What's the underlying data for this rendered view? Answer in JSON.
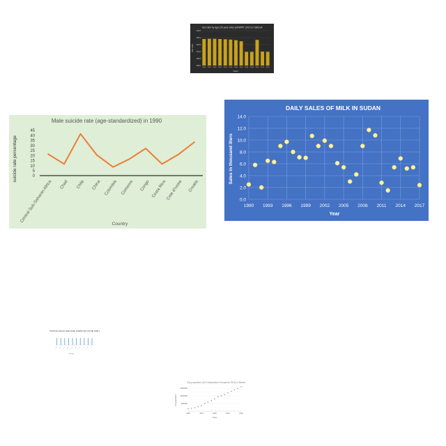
{
  "chart_data": [
    {
      "type": "bar",
      "title": "Sex ratio by age (20 year olds) (UNWPP, 2017) in Djibouti",
      "xlabel": "Years",
      "ylabel": "Sex ratio",
      "ylim": [
        100.0,
        102.5
      ],
      "yticks": [
        "102.5",
        "102.0",
        "101.5",
        "101.0",
        "100.5",
        "100.0"
      ],
      "categories": [
        "2000",
        "2001",
        "2002",
        "2003",
        "2004",
        "2005",
        "2006",
        "2007",
        "2008",
        "2009",
        "2010",
        "2011",
        "2012"
      ],
      "values": [
        101.9,
        101.92,
        101.92,
        101.9,
        101.88,
        101.86,
        101.82,
        101.74,
        100.98,
        100.98,
        101.84,
        101.0,
        100.98
      ],
      "grid": true,
      "colors": {
        "bar": "#c9a21c",
        "background": "#2b2b2b",
        "text": "#dddddd"
      }
    },
    {
      "type": "line",
      "title": "Male suicide rate (age-standardized) in 1990",
      "xlabel": "Country",
      "ylabel": "suicide rate percentage",
      "ylim": [
        0,
        45
      ],
      "yticks": [
        "0",
        "5",
        "10",
        "15",
        "20",
        "25",
        "30",
        "35",
        "40",
        "45"
      ],
      "categories": [
        "Central Sub-Saharan Africa",
        "Chad",
        "Chile",
        "China",
        "Colombia",
        "Comoros",
        "Congo",
        "Costa Rica",
        "Cote d'Ivoire",
        "Croatia"
      ],
      "values": [
        21.5,
        11.5,
        41.5,
        20.5,
        8.5,
        16.5,
        27.0,
        11.5,
        21.0,
        33.5
      ],
      "grid": false,
      "colors": {
        "line": "#ed7d31",
        "background": "#dfeed6",
        "text": "#555555"
      }
    },
    {
      "type": "scatter",
      "title": "DAILY SALES OF MILK IN SUDAN",
      "xlabel": "Year",
      "ylabel": "Sales in thousand liters",
      "xlim": [
        1990,
        2017
      ],
      "ylim": [
        0.0,
        14.0
      ],
      "xticks": [
        "1990",
        "1993",
        "1996",
        "1999",
        "2002",
        "2005",
        "2008",
        "2011",
        "2014",
        "2017"
      ],
      "yticks": [
        "0.0",
        "2.0",
        "4.0",
        "6.0",
        "8.0",
        "10.0",
        "12.0",
        "14.0"
      ],
      "x": [
        1990,
        1991,
        1992,
        1993,
        1994,
        1995,
        1996,
        1997,
        1998,
        1999,
        2000,
        2001,
        2002,
        2003,
        2004,
        2005,
        2006,
        2007,
        2008,
        2009,
        2010,
        2011,
        2012,
        2013,
        2014,
        2015,
        2016,
        2017
      ],
      "y": [
        2.5,
        5.8,
        2.0,
        6.5,
        6.3,
        9.0,
        9.7,
        8.0,
        7.1,
        7.0,
        10.7,
        9.0,
        9.9,
        9.0,
        6.1,
        5.4,
        3.0,
        4.2,
        9.0,
        11.7,
        10.8,
        2.8,
        1.5,
        5.4,
        6.9,
        5.2,
        5.4,
        2.4
      ],
      "grid": true,
      "colors": {
        "point": "#fff3a0",
        "background": "#4472c4",
        "text": "#ffffff"
      }
    },
    {
      "type": "bar",
      "title": "SEX RATIO BY AGE (20 YEAR OLDS) (UNWPP, 2017) IN THE YEAR 2015",
      "xlabel": "Country",
      "ylabel": "",
      "categories": [
        "",
        "",
        "",
        "",
        "",
        "",
        "",
        "",
        "",
        ""
      ],
      "values": [
        0.98,
        0.99,
        0.97,
        0.99,
        0.98,
        0.97,
        0.99,
        0.98,
        0.97,
        0.98
      ],
      "ylim": [
        0,
        1
      ],
      "colors": {
        "bar": "#5b9bd5"
      }
    },
    {
      "type": "scatter",
      "title": "City population (UN Urbanization Prospects 2018) in Manila",
      "xlabel": "Years",
      "ylabel": "City population",
      "xlim": [
        1950,
        2030
      ],
      "ylim": [
        0,
        15000000
      ],
      "xticks": [
        "1950",
        "1960",
        "1970",
        "1980",
        "1990",
        "2000",
        "2010",
        "2020",
        "2030"
      ],
      "yticks": [
        "5000000",
        "10000000",
        "15000000"
      ],
      "x": [
        1950,
        1955,
        1960,
        1965,
        1970,
        1975,
        1980,
        1985,
        1990,
        1995,
        2000,
        2005,
        2010,
        2015,
        2020,
        2025,
        2030
      ],
      "y": [
        1540000,
        1820000,
        2270000,
        2830000,
        3530000,
        4990000,
        5950000,
        6890000,
        7970000,
        9400000,
        9960000,
        10760000,
        11890000,
        12950000,
        13920000,
        14820000,
        15950000
      ],
      "colors": {
        "point": "#999999",
        "text": "#666666"
      }
    }
  ]
}
